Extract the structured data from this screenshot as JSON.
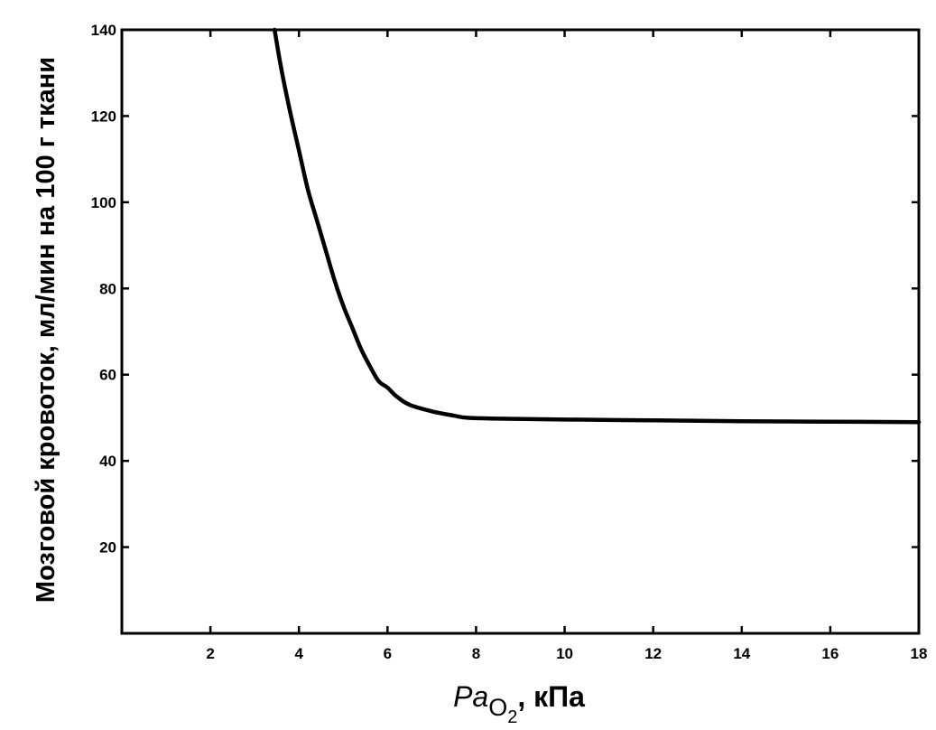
{
  "chart_data": {
    "type": "line",
    "title": "",
    "xlabel_main": "Pa",
    "xlabel_sub": "O",
    "xlabel_subsub": "2",
    "xlabel_unit": ", кПа",
    "ylabel": "Мозговой кровоток, мл/мин на 100 г ткани",
    "xlim": [
      0,
      18
    ],
    "ylim": [
      0,
      140
    ],
    "xticks": [
      2,
      4,
      6,
      8,
      10,
      12,
      14,
      16,
      18
    ],
    "yticks": [
      20,
      40,
      60,
      80,
      100,
      120,
      140
    ],
    "grid": false,
    "legend": "none",
    "line_color": "#000000",
    "series": [
      {
        "x": [
          3.45,
          3.6,
          3.8,
          4.0,
          4.2,
          4.4,
          4.6,
          4.8,
          5.0,
          5.2,
          5.4,
          5.6,
          5.8,
          6.0,
          6.2,
          6.5,
          7.0,
          7.5,
          7.8,
          8.5,
          10,
          12,
          14,
          16,
          18
        ],
        "y": [
          140,
          131,
          121,
          112,
          103,
          96,
          89,
          82,
          76,
          71,
          66,
          62,
          58.5,
          57,
          55,
          53,
          51.5,
          50.5,
          50,
          49.8,
          49.6,
          49.4,
          49.2,
          49.1,
          49
        ]
      }
    ]
  }
}
